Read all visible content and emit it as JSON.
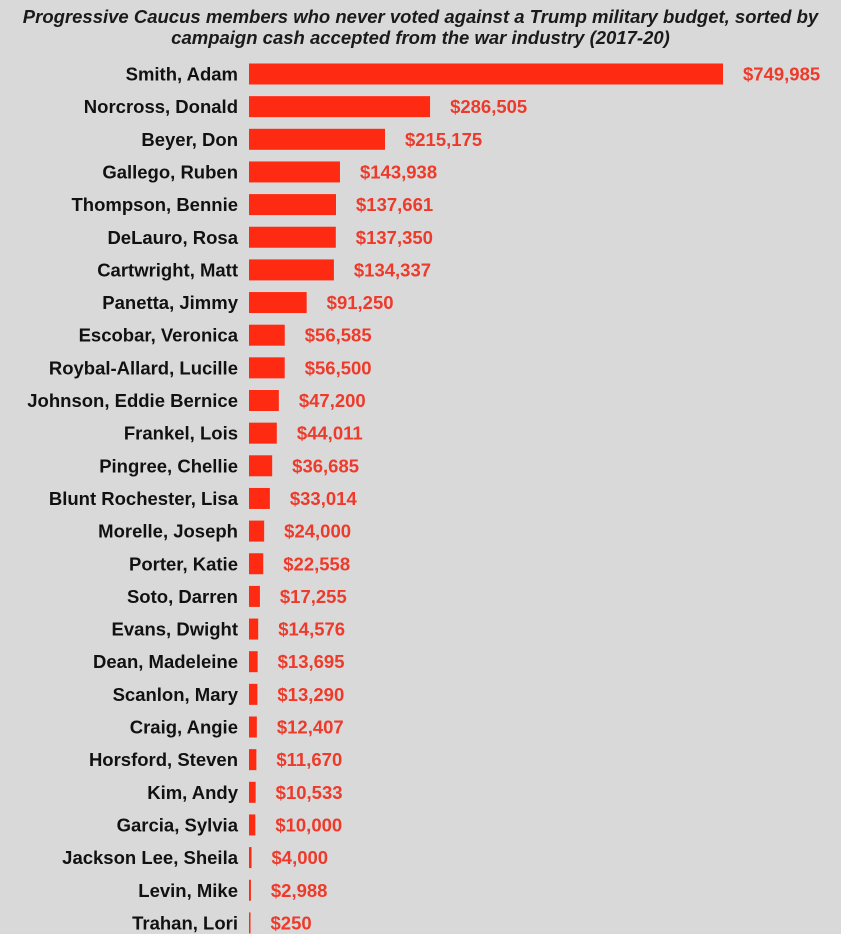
{
  "title_lines": [
    "Progressive Caucus members who never voted against a Trump military budget, sorted by",
    "campaign cash accepted from the war industry (2017-20)"
  ],
  "colors": {
    "background": "#d9d9d9",
    "bar": "#ff2a12",
    "value_text": "#ee3a2a",
    "label_text": "#111111"
  },
  "chart_data": {
    "type": "bar",
    "orientation": "horizontal",
    "title": "Progressive Caucus members who never voted against a Trump military budget, sorted by campaign cash accepted from the war industry (2017-20)",
    "xlabel": "",
    "ylabel": "",
    "grid": false,
    "legend": "none",
    "xlim": [
      0,
      749985
    ],
    "categories": [
      "Smith, Adam",
      "Norcross, Donald",
      "Beyer, Don",
      "Gallego, Ruben",
      "Thompson, Bennie",
      "DeLauro, Rosa",
      "Cartwright, Matt",
      "Panetta, Jimmy",
      "Escobar, Veronica",
      "Roybal-Allard, Lucille",
      "Johnson, Eddie Bernice",
      "Frankel, Lois",
      "Pingree, Chellie",
      "Blunt Rochester, Lisa",
      "Morelle, Joseph",
      "Porter, Katie",
      "Soto, Darren",
      "Evans, Dwight",
      "Dean, Madeleine",
      "Scanlon, Mary",
      "Craig, Angie",
      "Horsford, Steven",
      "Kim, Andy",
      "Garcia, Sylvia",
      "Jackson Lee, Sheila",
      "Levin, Mike",
      "Trahan, Lori"
    ],
    "values": [
      749985,
      286505,
      215175,
      143938,
      137661,
      137350,
      134337,
      91250,
      56585,
      56500,
      47200,
      44011,
      36685,
      33014,
      24000,
      22558,
      17255,
      14576,
      13695,
      13290,
      12407,
      11670,
      10533,
      10000,
      4000,
      2988,
      250
    ],
    "value_labels": [
      "$749,985",
      "$286,505",
      "$215,175",
      "$143,938",
      "$137,661",
      "$137,350",
      "$134,337",
      "$91,250",
      "$56,585",
      "$56,500",
      "$47,200",
      "$44,011",
      "$36,685",
      "$33,014",
      "$24,000",
      "$22,558",
      "$17,255",
      "$14,576",
      "$13,695",
      "$13,290",
      "$12,407",
      "$11,670",
      "$10,533",
      "$10,000",
      "$4,000",
      "$2,988",
      "$250"
    ]
  }
}
